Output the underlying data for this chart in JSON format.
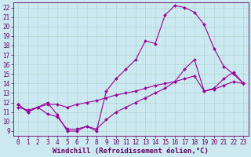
{
  "xlabel": "Windchill (Refroidissement éolien,°C)",
  "xlim": [
    -0.5,
    23.5
  ],
  "ylim": [
    8.5,
    22.5
  ],
  "xticks": [
    0,
    1,
    2,
    3,
    4,
    5,
    6,
    7,
    8,
    9,
    10,
    11,
    12,
    13,
    14,
    15,
    16,
    17,
    18,
    19,
    20,
    21,
    22,
    23
  ],
  "yticks": [
    9,
    10,
    11,
    12,
    13,
    14,
    15,
    16,
    17,
    18,
    19,
    20,
    21,
    22
  ],
  "bg_color": "#cce8f0",
  "line_color": "#990099",
  "grid_color": "#aad4cc",
  "line1_x": [
    0,
    1,
    2,
    3,
    4,
    5,
    6,
    7,
    8,
    9,
    10,
    11,
    12,
    13,
    14,
    15,
    16,
    17,
    18,
    19,
    20,
    21,
    22,
    23
  ],
  "line1_y": [
    11.8,
    11.0,
    11.5,
    12.0,
    10.7,
    9.0,
    9.0,
    9.5,
    9.0,
    13.2,
    14.5,
    15.5,
    16.5,
    18.5,
    18.2,
    21.2,
    22.2,
    22.0,
    21.5,
    20.2,
    17.7,
    15.8,
    15.0,
    14.0
  ],
  "line2_x": [
    0,
    1,
    2,
    3,
    4,
    5,
    6,
    7,
    8,
    9,
    10,
    11,
    12,
    13,
    14,
    15,
    16,
    17,
    18,
    19,
    20,
    21,
    22,
    23
  ],
  "line2_y": [
    11.8,
    11.0,
    11.5,
    10.8,
    10.5,
    9.2,
    9.2,
    9.5,
    9.2,
    10.2,
    11.0,
    11.5,
    12.0,
    12.5,
    13.0,
    13.5,
    14.2,
    15.5,
    16.5,
    13.2,
    13.5,
    14.5,
    15.2,
    14.0
  ],
  "line3_x": [
    0,
    1,
    2,
    3,
    4,
    5,
    6,
    7,
    8,
    9,
    10,
    11,
    12,
    13,
    14,
    15,
    16,
    17,
    18,
    19,
    20,
    21,
    22,
    23
  ],
  "line3_y": [
    11.5,
    11.2,
    11.5,
    11.8,
    11.8,
    11.5,
    11.8,
    12.0,
    12.2,
    12.5,
    12.8,
    13.0,
    13.2,
    13.5,
    13.8,
    14.0,
    14.2,
    14.5,
    14.8,
    13.2,
    13.4,
    13.8,
    14.2,
    14.0
  ],
  "tick_fontsize": 5.5,
  "label_fontsize": 6.5,
  "spine_color": "#660066",
  "tick_color": "#660066"
}
